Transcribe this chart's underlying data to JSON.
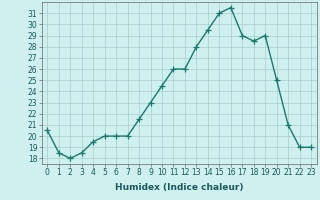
{
  "x": [
    0,
    1,
    2,
    3,
    4,
    5,
    6,
    7,
    8,
    9,
    10,
    11,
    12,
    13,
    14,
    15,
    16,
    17,
    18,
    19,
    20,
    21,
    22,
    23
  ],
  "y": [
    20.5,
    18.5,
    18.0,
    18.5,
    19.5,
    20.0,
    20.0,
    20.0,
    21.5,
    23.0,
    24.5,
    26.0,
    26.0,
    28.0,
    29.5,
    31.0,
    31.5,
    29.0,
    28.5,
    29.0,
    25.0,
    21.0,
    19.0,
    19.0
  ],
  "line_color": "#1a7a6e",
  "marker": "+",
  "marker_size": 4,
  "linewidth": 1.0,
  "bg_color": "#cef0ee",
  "grid_color": "#aacccc",
  "xlabel": "Humidex (Indice chaleur)",
  "xlim": [
    -0.5,
    23.5
  ],
  "ylim": [
    17.5,
    32.0
  ],
  "yticks": [
    18,
    19,
    20,
    21,
    22,
    23,
    24,
    25,
    26,
    27,
    28,
    29,
    30,
    31
  ],
  "xticks": [
    0,
    1,
    2,
    3,
    4,
    5,
    6,
    7,
    8,
    9,
    10,
    11,
    12,
    13,
    14,
    15,
    16,
    17,
    18,
    19,
    20,
    21,
    22,
    23
  ],
  "tick_fontsize": 5.5,
  "label_fontsize": 6.5,
  "axis_color": "#666666"
}
